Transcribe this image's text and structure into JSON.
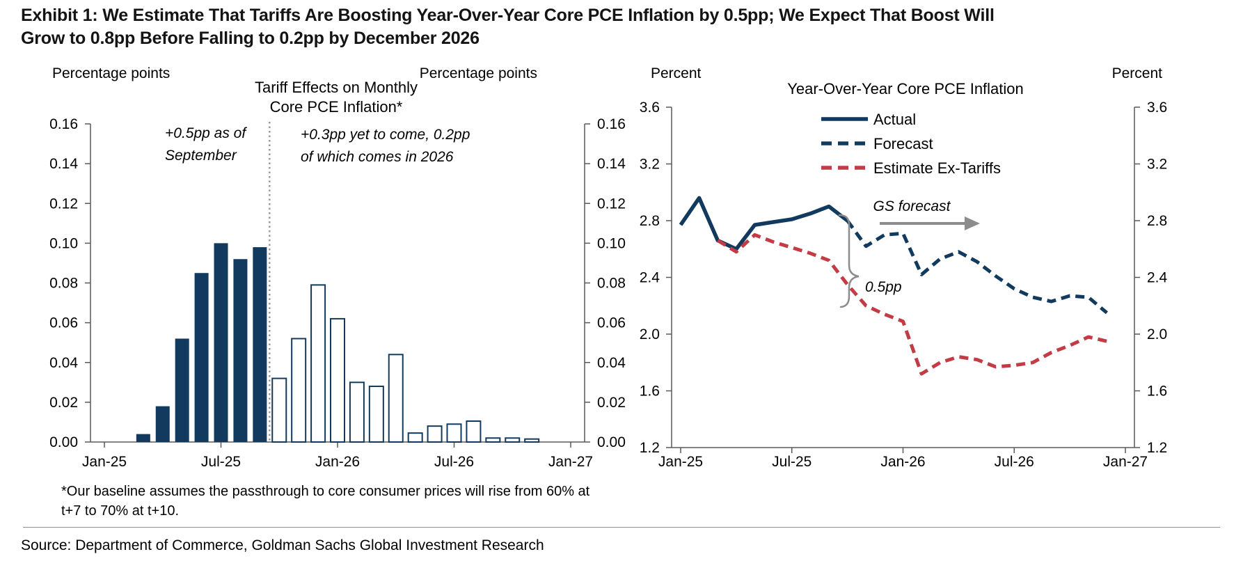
{
  "header": {
    "title_lines": [
      "Exhibit 1: We Estimate That Tariffs Are Boosting Year-Over-Year Core PCE Inflation by 0.5pp; We Expect That Boost Will",
      "Grow to 0.8pp Before Falling to 0.2pp by December 2026"
    ]
  },
  "footnote_lines": [
    "*Our baseline assumes the passthrough to core consumer prices will rise from 60% at",
    "t+7 to 70% at t+10."
  ],
  "source": "Source: Department of Commerce, Goldman Sachs Global Investment Research",
  "colors": {
    "navy": "#113A5E",
    "red": "#C33B45",
    "annotation_gray": "#8C8C8C",
    "axis_gray": "#595959",
    "divider_gray": "#999999"
  },
  "chart_data": [
    {
      "type": "bar",
      "title_lines": [
        "Tariff Effects on Monthly",
        "Core PCE Inflation*"
      ],
      "ylabel_left": "Percentage points",
      "ylabel_right": "Percentage points",
      "ylim": [
        0,
        0.16
      ],
      "ytick_labels": [
        "0.00",
        "0.02",
        "0.04",
        "0.06",
        "0.08",
        "0.10",
        "0.12",
        "0.14",
        "0.16"
      ],
      "xtick_labels": [
        "Jan-25",
        "Jul-25",
        "Jan-26",
        "Jul-26",
        "Jan-27"
      ],
      "annotation_pre_lines": [
        "+0.5pp as of",
        "September"
      ],
      "annotation_post_lines": [
        "+0.3pp yet to come, 0.2pp",
        "of which comes in 2026"
      ],
      "divider_after": "Sep-25",
      "bars": [
        {
          "m": "Mar-25",
          "v": 0.004,
          "phase": "actual"
        },
        {
          "m": "Apr-25",
          "v": 0.018,
          "phase": "actual"
        },
        {
          "m": "May-25",
          "v": 0.052,
          "phase": "actual"
        },
        {
          "m": "Jun-25",
          "v": 0.085,
          "phase": "actual"
        },
        {
          "m": "Jul-25",
          "v": 0.1,
          "phase": "actual"
        },
        {
          "m": "Aug-25",
          "v": 0.092,
          "phase": "actual"
        },
        {
          "m": "Sep-25",
          "v": 0.098,
          "phase": "actual"
        },
        {
          "m": "Oct-25",
          "v": 0.032,
          "phase": "projected"
        },
        {
          "m": "Nov-25",
          "v": 0.052,
          "phase": "projected"
        },
        {
          "m": "Dec-25",
          "v": 0.079,
          "phase": "projected"
        },
        {
          "m": "Jan-26",
          "v": 0.062,
          "phase": "projected"
        },
        {
          "m": "Feb-26",
          "v": 0.03,
          "phase": "projected"
        },
        {
          "m": "Mar-26",
          "v": 0.028,
          "phase": "projected"
        },
        {
          "m": "Apr-26",
          "v": 0.044,
          "phase": "projected"
        },
        {
          "m": "May-26",
          "v": 0.0045,
          "phase": "projected"
        },
        {
          "m": "Jun-26",
          "v": 0.008,
          "phase": "projected"
        },
        {
          "m": "Jul-26",
          "v": 0.009,
          "phase": "projected"
        },
        {
          "m": "Aug-26",
          "v": 0.0105,
          "phase": "projected"
        },
        {
          "m": "Sep-26",
          "v": 0.002,
          "phase": "projected"
        },
        {
          "m": "Oct-26",
          "v": 0.002,
          "phase": "projected"
        },
        {
          "m": "Nov-26",
          "v": 0.0015,
          "phase": "projected"
        }
      ]
    },
    {
      "type": "line",
      "title": "Year-Over-Year Core PCE Inflation",
      "ylabel_left": "Percent",
      "ylabel_right": "Percent",
      "ylim": [
        1.2,
        3.6
      ],
      "ytick_labels": [
        "1.2",
        "1.6",
        "2.0",
        "2.4",
        "2.8",
        "3.2",
        "3.6"
      ],
      "xtick_labels": [
        "Jan-25",
        "Jul-25",
        "Jan-26",
        "Jul-26",
        "Jan-27"
      ],
      "series": [
        {
          "name": "Actual",
          "style": "solid",
          "color_key": "navy",
          "start": "Jan-25",
          "values": [
            2.77,
            2.96,
            2.66,
            2.6,
            2.77,
            2.79,
            2.81,
            2.85,
            2.9,
            2.8
          ]
        },
        {
          "name": "Forecast",
          "style": "dashed",
          "color_key": "navy",
          "start": "Oct-25",
          "values": [
            2.8,
            2.62,
            2.7,
            2.71,
            2.42,
            2.53,
            2.58,
            2.51,
            2.41,
            2.32,
            2.26,
            2.23,
            2.27,
            2.26,
            2.15
          ]
        },
        {
          "name": "Estimate Ex-Tariffs",
          "style": "dashed",
          "color_key": "red",
          "start": "Mar-25",
          "values": [
            2.66,
            2.58,
            2.7,
            2.65,
            2.61,
            2.57,
            2.52,
            2.35,
            2.2,
            2.14,
            2.09,
            1.72,
            1.8,
            1.84,
            1.82,
            1.77,
            1.78,
            1.8,
            1.87,
            1.92,
            1.98,
            1.95
          ]
        }
      ],
      "annotations": {
        "gs_forecast": "GS forecast",
        "gap_label": "0.5pp"
      }
    }
  ]
}
